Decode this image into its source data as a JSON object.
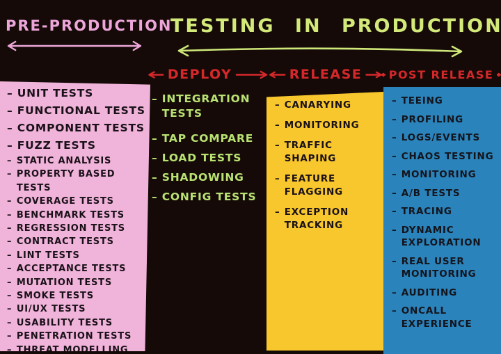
{
  "header": {
    "pre_production_title": "PRE-PRODUCTION",
    "main_title": "TESTING IN PRODUCTION"
  },
  "phases": {
    "deploy": "DEPLOY",
    "release": "RELEASE",
    "post_release": "POST RELEASE"
  },
  "bullet": "–",
  "icons": {
    "left_arrow": "←",
    "right_arrow": "→",
    "double_arrow": "↔"
  },
  "pre_production": {
    "items": [
      "UNIT TESTS",
      "FUNCTIONAL TESTS",
      "COMPONENT TESTS",
      "FUZZ TESTS",
      "STATIC ANALYSIS",
      "PROPERTY BASED TESTS",
      "COVERAGE TESTS",
      "BENCHMARK TESTS",
      "REGRESSION TESTS",
      "CONTRACT TESTS",
      "LINT TESTS",
      "ACCEPTANCE TESTS",
      "MUTATION TESTS",
      "SMOKE TESTS",
      "UI/UX TESTS",
      "USABILITY TESTS",
      "PENETRATION TESTS",
      "THREAT MODELLING"
    ]
  },
  "deploy": {
    "items": [
      "INTEGRATION TESTS",
      "TAP COMPARE",
      "LOAD TESTS",
      "SHADOWING",
      "CONFIG TESTS"
    ]
  },
  "release": {
    "items": [
      "CANARYING",
      "MONITORING",
      "TRAFFIC SHAPING",
      "FEATURE FLAGGING",
      "EXCEPTION TRACKING"
    ]
  },
  "post_release": {
    "items": [
      "TEEING",
      "PROFILING",
      "LOGS/EVENTS",
      "CHAOS TESTING",
      "MONITORING",
      "A/B TESTS",
      "TRACING",
      "DYNAMIC EXPLORATION",
      "REAL USER MONITORING",
      "AUDITING",
      "ONCALL EXPERIENCE"
    ]
  },
  "colors": {
    "background": "#150a07",
    "pre_production_bg": "#f0b3da",
    "release_bg": "#f8c72d",
    "post_release_bg": "#2a83ba",
    "phase_header_red": "#d6282b",
    "main_title_green": "#d3ea7b",
    "deploy_item_green": "#b9e273",
    "pre_title_pink": "#eda6da",
    "ink": "#1a1118"
  }
}
